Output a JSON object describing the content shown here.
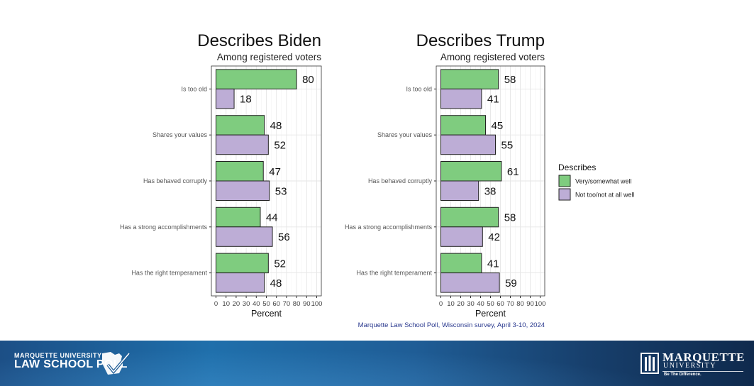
{
  "colors": {
    "very_well": "#7fcc7f",
    "not_well": "#bdadd6",
    "border": "#222222",
    "source_text": "#2b3a8f"
  },
  "chart_data": [
    {
      "type": "bar",
      "orientation": "horizontal",
      "title": "Describes Biden",
      "subtitle": "Among registered voters",
      "xlabel": "Percent",
      "xlim": [
        0,
        100
      ],
      "xticks": [
        "0",
        "10",
        "20",
        "30",
        "40",
        "50",
        "60",
        "70",
        "80",
        "90",
        "100"
      ],
      "categories": [
        "Is too old",
        "Shares your values",
        "Has behaved corruptly",
        "Has a strong accomplishments",
        "Has the right temperament"
      ],
      "series": [
        {
          "name": "Very/somewhat well",
          "values": [
            80,
            48,
            47,
            44,
            52
          ]
        },
        {
          "name": "Not too/not at all well",
          "values": [
            18,
            52,
            53,
            56,
            48
          ]
        }
      ],
      "grid": true
    },
    {
      "type": "bar",
      "orientation": "horizontal",
      "title": "Describes Trump",
      "subtitle": "Among registered voters",
      "xlabel": "Percent",
      "xlim": [
        0,
        100
      ],
      "xticks": [
        "0",
        "10",
        "20",
        "30",
        "40",
        "50",
        "60",
        "70",
        "80",
        "90",
        "100"
      ],
      "categories": [
        "Is too old",
        "Shares your values",
        "Has behaved corruptly",
        "Has a strong accomplishments",
        "Has the right temperament"
      ],
      "series": [
        {
          "name": "Very/somewhat well",
          "values": [
            58,
            45,
            61,
            58,
            41
          ]
        },
        {
          "name": "Not too/not at all well",
          "values": [
            41,
            55,
            38,
            42,
            59
          ]
        }
      ],
      "grid": true
    }
  ],
  "legend": {
    "title": "Describes",
    "placement": "right",
    "items": [
      "Very/somewhat well",
      "Not too/not at all well"
    ]
  },
  "source": "Marquette Law School Poll, Wisconsin survey, April 3-10, 2024",
  "footer": {
    "poll_line1": "MARQUETTE UNIVERSITY",
    "poll_line2": "LAW SCHOOL POLL",
    "university_name": "MARQUETTE",
    "university_word": "UNIVERSITY",
    "tagline": "Be The Difference."
  }
}
